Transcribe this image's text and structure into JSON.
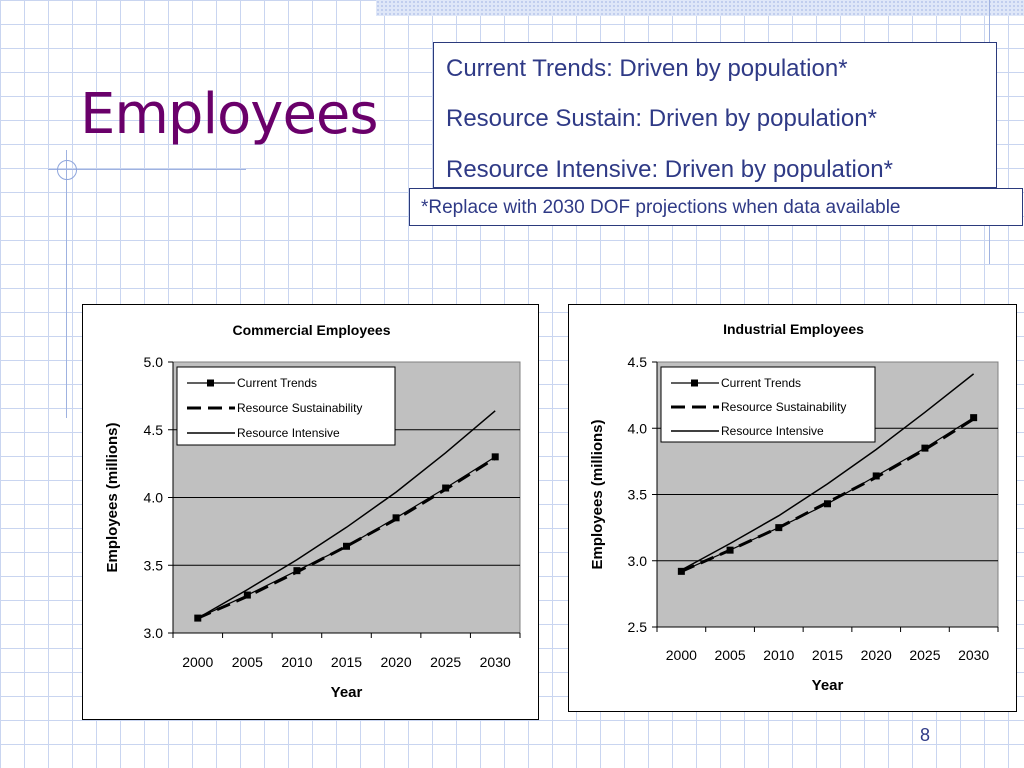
{
  "slide": {
    "title": "Employees",
    "trends": [
      "Current Trends: Driven by population*",
      "Resource Sustain: Driven by population*",
      "Resource Intensive: Driven by population*"
    ],
    "note": "*Replace with 2030 DOF projections when data available",
    "page_number": "8"
  },
  "chart_data": [
    {
      "type": "line",
      "title": "Commercial Employees",
      "xlabel": "Year",
      "ylabel": "Employees (millions)",
      "x_ticks": [
        "2000",
        "2005",
        "2010",
        "2015",
        "2020",
        "2025",
        "2030"
      ],
      "y_ticks": [
        "3.0",
        "3.5",
        "4.0",
        "4.5",
        "5.0"
      ],
      "ylim": [
        3.0,
        5.0
      ],
      "xlim": [
        1998,
        2033
      ],
      "grid": true,
      "legend": "top-left",
      "series": [
        {
          "name": "Current Trends",
          "style": "marker-line",
          "x": [
            2000.5,
            2005.5,
            2010.5,
            2015.5,
            2020.5,
            2025.5,
            2030.5
          ],
          "values": [
            3.11,
            3.28,
            3.46,
            3.64,
            3.85,
            4.07,
            4.3
          ]
        },
        {
          "name": "Resource Sustainability",
          "style": "dashed",
          "x": [
            2000.5,
            2005.5,
            2010.5,
            2015.5,
            2020.5,
            2025.5,
            2030.5
          ],
          "values": [
            3.11,
            3.27,
            3.45,
            3.64,
            3.84,
            4.06,
            4.29
          ]
        },
        {
          "name": "Resource Intensive",
          "style": "solid",
          "x": [
            2000.5,
            2005.5,
            2010.5,
            2015.5,
            2020.5,
            2025.5,
            2030.5
          ],
          "values": [
            3.11,
            3.32,
            3.54,
            3.78,
            4.04,
            4.33,
            4.64
          ]
        }
      ]
    },
    {
      "type": "line",
      "title": "Industrial Employees",
      "xlabel": "Year",
      "ylabel": "Employees (millions)",
      "x_ticks": [
        "2000",
        "2005",
        "2010",
        "2015",
        "2020",
        "2025",
        "2030"
      ],
      "y_ticks": [
        "2.5",
        "3.0",
        "3.5",
        "4.0",
        "4.5"
      ],
      "ylim": [
        2.5,
        4.5
      ],
      "xlim": [
        1998,
        2033
      ],
      "grid": true,
      "legend": "top-right",
      "series": [
        {
          "name": "Current Trends",
          "style": "marker-line",
          "x": [
            2000.5,
            2005.5,
            2010.5,
            2015.5,
            2020.5,
            2025.5,
            2030.5
          ],
          "values": [
            2.92,
            3.08,
            3.25,
            3.43,
            3.64,
            3.85,
            4.08
          ]
        },
        {
          "name": "Resource Sustainability",
          "style": "dashed",
          "x": [
            2000.5,
            2005.5,
            2010.5,
            2015.5,
            2020.5,
            2025.5,
            2030.5
          ],
          "values": [
            2.92,
            3.08,
            3.25,
            3.44,
            3.63,
            3.84,
            4.07
          ]
        },
        {
          "name": "Resource Intensive",
          "style": "solid",
          "x": [
            2000.5,
            2005.5,
            2010.5,
            2015.5,
            2020.5,
            2025.5,
            2030.5
          ],
          "values": [
            2.93,
            3.13,
            3.34,
            3.58,
            3.84,
            4.12,
            4.41
          ]
        }
      ]
    }
  ]
}
